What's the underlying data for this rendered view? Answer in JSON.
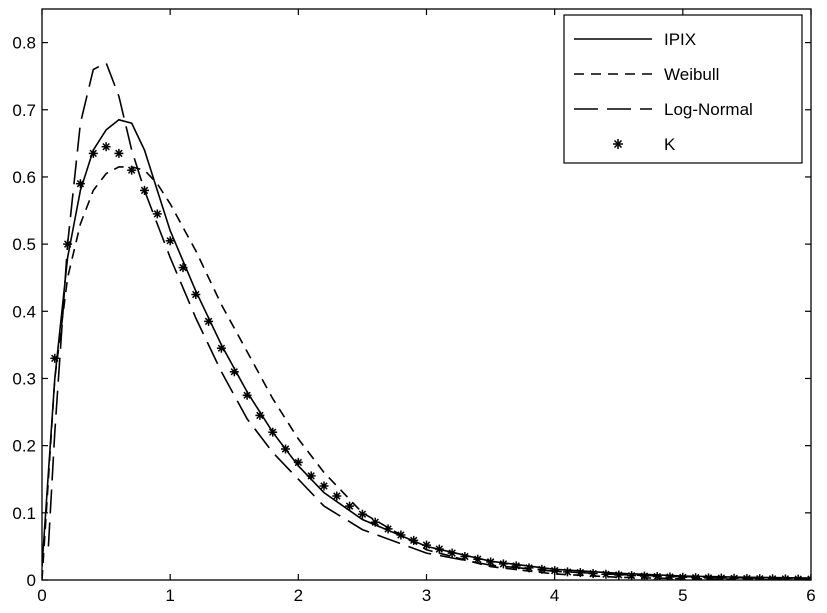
{
  "chart_data": {
    "type": "line",
    "title": "",
    "xlabel": "",
    "ylabel": "",
    "xlim": [
      0,
      6
    ],
    "ylim": [
      0,
      0.85
    ],
    "xticks": [
      "0",
      "1",
      "2",
      "3",
      "4",
      "5",
      "6"
    ],
    "yticks": [
      "0",
      "0.1",
      "0.2",
      "0.3",
      "0.4",
      "0.5",
      "0.6",
      "0.7",
      "0.8"
    ],
    "grid": false,
    "legend_position": "top-right",
    "series": [
      {
        "name": "IPIX",
        "style": "solid",
        "color": "#000000",
        "x": [
          0.0,
          0.1,
          0.2,
          0.3,
          0.4,
          0.5,
          0.6,
          0.7,
          0.8,
          0.9,
          1.0,
          1.2,
          1.4,
          1.6,
          1.8,
          2.0,
          2.2,
          2.5,
          3.0,
          3.5,
          4.0,
          4.5,
          5.0,
          5.5,
          6.0
        ],
        "y": [
          0.02,
          0.3,
          0.48,
          0.58,
          0.64,
          0.67,
          0.685,
          0.68,
          0.64,
          0.58,
          0.52,
          0.43,
          0.35,
          0.28,
          0.22,
          0.17,
          0.13,
          0.09,
          0.05,
          0.028,
          0.016,
          0.01,
          0.006,
          0.004,
          0.003
        ]
      },
      {
        "name": "Weibull",
        "style": "dashed",
        "color": "#000000",
        "x": [
          0.0,
          0.1,
          0.2,
          0.3,
          0.4,
          0.5,
          0.6,
          0.7,
          0.8,
          0.9,
          1.0,
          1.2,
          1.4,
          1.6,
          1.8,
          2.0,
          2.2,
          2.5,
          3.0,
          3.5,
          4.0,
          4.5,
          5.0,
          5.5,
          6.0
        ],
        "y": [
          0.0,
          0.3,
          0.45,
          0.53,
          0.58,
          0.605,
          0.615,
          0.615,
          0.61,
          0.59,
          0.56,
          0.49,
          0.41,
          0.34,
          0.27,
          0.21,
          0.16,
          0.1,
          0.045,
          0.02,
          0.009,
          0.004,
          0.002,
          0.001,
          0.0
        ]
      },
      {
        "name": "Log-Normal",
        "style": "longdash",
        "color": "#000000",
        "x": [
          0.05,
          0.1,
          0.2,
          0.3,
          0.4,
          0.5,
          0.6,
          0.7,
          0.8,
          0.9,
          1.0,
          1.2,
          1.4,
          1.6,
          1.8,
          2.0,
          2.2,
          2.5,
          3.0,
          3.5,
          4.0,
          4.5,
          5.0,
          5.5,
          6.0
        ],
        "y": [
          0.05,
          0.22,
          0.5,
          0.68,
          0.76,
          0.77,
          0.72,
          0.64,
          0.58,
          0.53,
          0.48,
          0.39,
          0.31,
          0.24,
          0.19,
          0.15,
          0.11,
          0.075,
          0.04,
          0.022,
          0.013,
          0.008,
          0.005,
          0.003,
          0.002
        ]
      },
      {
        "name": "K",
        "style": "markers",
        "color": "#000000",
        "x": [
          0.1,
          0.2,
          0.3,
          0.4,
          0.5,
          0.6,
          0.7,
          0.8,
          0.9,
          1.0,
          1.1,
          1.2,
          1.3,
          1.4,
          1.5,
          1.6,
          1.7,
          1.8,
          1.9,
          2.0,
          2.1,
          2.2,
          2.3,
          2.4,
          2.5,
          2.6,
          2.7,
          2.8,
          2.9,
          3.0,
          3.1,
          3.2,
          3.3,
          3.4,
          3.5,
          3.6,
          3.7,
          3.8,
          3.9,
          4.0,
          4.1,
          4.2,
          4.3,
          4.4,
          4.5,
          4.6,
          4.7,
          4.8,
          4.9,
          5.0,
          5.1,
          5.2,
          5.3,
          5.4,
          5.5,
          5.6,
          5.7,
          5.8,
          5.9,
          6.0
        ],
        "y": [
          0.33,
          0.5,
          0.59,
          0.635,
          0.645,
          0.635,
          0.61,
          0.58,
          0.545,
          0.505,
          0.465,
          0.425,
          0.385,
          0.345,
          0.31,
          0.275,
          0.245,
          0.22,
          0.195,
          0.175,
          0.155,
          0.14,
          0.125,
          0.11,
          0.098,
          0.086,
          0.076,
          0.067,
          0.059,
          0.052,
          0.046,
          0.04,
          0.035,
          0.031,
          0.027,
          0.024,
          0.021,
          0.018,
          0.016,
          0.014,
          0.012,
          0.011,
          0.0095,
          0.0085,
          0.0075,
          0.0065,
          0.0058,
          0.0051,
          0.0045,
          0.004,
          0.0036,
          0.0032,
          0.0028,
          0.0025,
          0.0022,
          0.002,
          0.0018,
          0.0016,
          0.0014,
          0.0013
        ]
      }
    ]
  }
}
